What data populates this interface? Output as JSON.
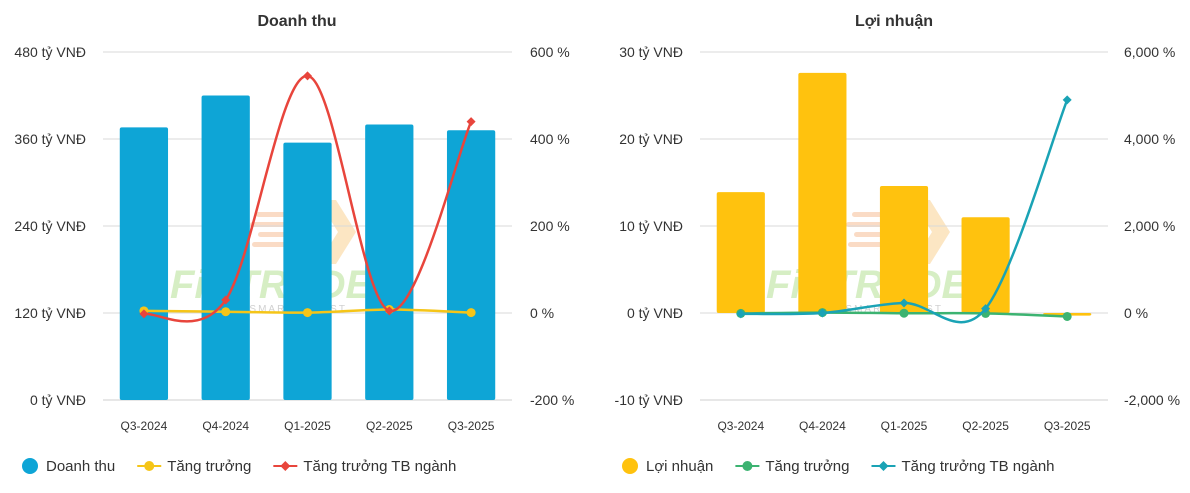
{
  "chart_data": [
    {
      "type": "bar",
      "title": "Doanh thu",
      "categories": [
        "Q3-2024",
        "Q4-2024",
        "Q1-2025",
        "Q2-2025",
        "Q3-2025"
      ],
      "left_axis": {
        "min": 0,
        "max": 480,
        "ticks": [
          0,
          120,
          240,
          360,
          480
        ],
        "tick_labels": [
          "0 tỷ VNĐ",
          "120 tỷ VNĐ",
          "240 tỷ VNĐ",
          "360 tỷ VNĐ",
          "480 tỷ VNĐ"
        ]
      },
      "right_axis": {
        "min": -200,
        "max": 600,
        "ticks": [
          -200,
          0,
          200,
          400,
          600
        ],
        "tick_labels": [
          "-200 %",
          "0 %",
          "200 %",
          "400 %",
          "600 %"
        ]
      },
      "grid": true,
      "legend_position": "bottom-left",
      "series": [
        {
          "name": "Doanh thu",
          "kind": "bar",
          "axis": "left",
          "color": "#0ea5d6",
          "legend_marker": "circle",
          "values": [
            376,
            420,
            355,
            380,
            372
          ]
        },
        {
          "name": "Tăng trưởng",
          "kind": "line",
          "axis": "right",
          "color": "#f5c518",
          "legend_marker": "circle",
          "values": [
            5,
            3,
            1,
            8,
            1
          ]
        },
        {
          "name": "Tăng trưởng TB ngành",
          "kind": "line",
          "axis": "right",
          "color": "#e8453c",
          "legend_marker": "diamond",
          "values": [
            -2,
            30,
            545,
            5,
            440
          ]
        }
      ]
    },
    {
      "type": "bar",
      "title": "Lợi nhuận",
      "categories": [
        "Q3-2024",
        "Q4-2024",
        "Q1-2025",
        "Q2-2025",
        "Q3-2025"
      ],
      "left_axis": {
        "min": -10,
        "max": 30,
        "ticks": [
          -10,
          0,
          10,
          20,
          30
        ],
        "tick_labels": [
          "-10 tỷ VNĐ",
          "0 tỷ VNĐ",
          "10 tỷ VNĐ",
          "20 tỷ VNĐ",
          "30 tỷ VNĐ"
        ]
      },
      "right_axis": {
        "min": -2000,
        "max": 6000,
        "ticks": [
          -2000,
          0,
          2000,
          4000,
          6000
        ],
        "tick_labels": [
          "-2,000 %",
          "0 %",
          "2,000 %",
          "4,000 %",
          "6,000 %"
        ]
      },
      "grid": true,
      "legend_position": "bottom-left",
      "series": [
        {
          "name": "Lợi nhuận",
          "kind": "bar",
          "axis": "left",
          "color": "#ffc20e",
          "legend_marker": "circle",
          "values": [
            13.9,
            27.6,
            14.6,
            11.0,
            -0.3
          ]
        },
        {
          "name": "Tăng trưởng",
          "kind": "line",
          "axis": "right",
          "color": "#3cb371",
          "legend_marker": "circle",
          "values": [
            -10,
            10,
            -5,
            -10,
            -80
          ]
        },
        {
          "name": "Tăng trưởng TB ngành",
          "kind": "line",
          "axis": "right",
          "color": "#1aa3b5",
          "legend_marker": "diamond",
          "values": [
            -20,
            0,
            230,
            100,
            4900
          ]
        }
      ]
    }
  ]
}
